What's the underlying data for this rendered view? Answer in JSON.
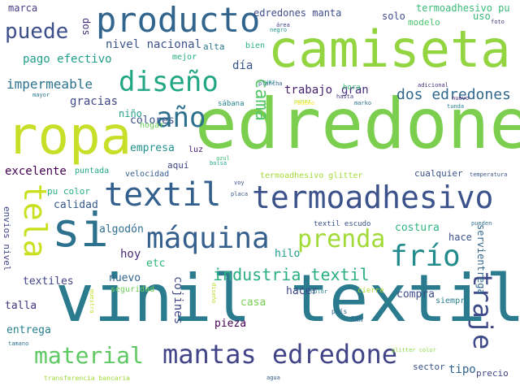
{
  "words": [
    {
      "text": "edredone",
      "color": "#7ccf4e"
    },
    {
      "text": "vinil textil",
      "color": "#2a7b8e"
    },
    {
      "text": "camiseta",
      "color": "#92d541"
    },
    {
      "text": "ropa",
      "color": "#c7df29"
    },
    {
      "text": "si",
      "color": "#2c718e"
    },
    {
      "text": "textil",
      "color": "#34608d"
    },
    {
      "text": "termoadhesivo",
      "color": "#3b528b"
    },
    {
      "text": "producto",
      "color": "#32658e"
    },
    {
      "text": "mantas edredone",
      "color": "#414487"
    },
    {
      "text": "máquina",
      "color": "#355f8d"
    },
    {
      "text": "tela",
      "color": "#c9e020"
    },
    {
      "text": "diseño",
      "color": "#22a784"
    },
    {
      "text": "año",
      "color": "#2d708e"
    },
    {
      "text": "frío",
      "color": "#228c8d"
    },
    {
      "text": "prenda",
      "color": "#a2da37"
    },
    {
      "text": "traje",
      "color": "#3e4a89"
    },
    {
      "text": "material",
      "color": "#5ec962"
    },
    {
      "text": "puede",
      "color": "#3c4f8a"
    },
    {
      "text": "industria textil",
      "color": "#29af7f"
    },
    {
      "text": "cama",
      "color": "#56c667"
    },
    {
      "text": "dos edredones",
      "color": "#31688e"
    },
    {
      "text": "trabajo",
      "color": "#482173"
    },
    {
      "text": "gran",
      "color": "#472d7b"
    },
    {
      "text": "impermeable",
      "color": "#2c728e"
    },
    {
      "text": "edredones manta",
      "color": "#3d4d8a"
    },
    {
      "text": "termoadhesivo pu",
      "color": "#3aba76"
    },
    {
      "text": "solo",
      "color": "#3e4989"
    },
    {
      "text": "modelo",
      "color": "#4ec36b"
    },
    {
      "text": "uso",
      "color": "#35b779"
    },
    {
      "text": "tipo",
      "color": "#33638d"
    },
    {
      "text": "nivel nacional",
      "color": "#3b528b"
    },
    {
      "text": "pago efectivo",
      "color": "#1f9e89"
    },
    {
      "text": "marca",
      "color": "#443b84"
    },
    {
      "text": "dos",
      "color": "#46327e"
    },
    {
      "text": "día",
      "color": "#39568c"
    },
    {
      "text": "alta",
      "color": "#2a778e"
    },
    {
      "text": "bien",
      "color": "#2fb47c"
    },
    {
      "text": "mejor",
      "color": "#25ac82"
    },
    {
      "text": "gracias",
      "color": "#3f4788"
    },
    {
      "text": "colores",
      "color": "#3b518b"
    },
    {
      "text": "niño",
      "color": "#1fa187"
    },
    {
      "text": "hogar",
      "color": "#6ece58"
    },
    {
      "text": "empresa",
      "color": "#21918c"
    },
    {
      "text": "luz",
      "color": "#481a6c"
    },
    {
      "text": "excelente",
      "color": "#440154"
    },
    {
      "text": "puntada",
      "color": "#22a785"
    },
    {
      "text": "velocidad",
      "color": "#355e8d"
    },
    {
      "text": "aquí",
      "color": "#3f4889"
    },
    {
      "text": "hora",
      "color": "#3dbc74"
    },
    {
      "text": "sábana",
      "color": "#25848e"
    },
    {
      "text": "calidad",
      "color": "#38598c"
    },
    {
      "text": "pu color",
      "color": "#29af7f"
    },
    {
      "text": "algodón",
      "color": "#2e6e8e"
    },
    {
      "text": "hoy",
      "color": "#472c7a"
    },
    {
      "text": "etc",
      "color": "#2fb47c"
    },
    {
      "text": "hilo",
      "color": "#1e9b8a"
    },
    {
      "text": "costura",
      "color": "#2fb47c"
    },
    {
      "text": "hace",
      "color": "#3b528b"
    },
    {
      "text": "textiles",
      "color": "#414487"
    },
    {
      "text": "nuevo",
      "color": "#33638d"
    },
    {
      "text": "seguridad",
      "color": "#6ccd5a"
    },
    {
      "text": "cojines",
      "color": "#3f4788"
    },
    {
      "text": "talla",
      "color": "#46327e"
    },
    {
      "text": "casa",
      "color": "#7ad151"
    },
    {
      "text": "hacer",
      "color": "#3f4788"
    },
    {
      "text": "compra",
      "color": "#3e4c8a"
    },
    {
      "text": "siempre",
      "color": "#277f8e"
    },
    {
      "text": "entrega",
      "color": "#277f8e"
    },
    {
      "text": "pieza",
      "color": "#440154"
    },
    {
      "text": "mm",
      "color": "#2e6d8e"
    },
    {
      "text": "sector",
      "color": "#3b528b"
    },
    {
      "text": "precio",
      "color": "#414487"
    },
    {
      "text": "cualquier",
      "color": "#3b518b"
    },
    {
      "text": "servientrega",
      "color": "#31678e"
    },
    {
      "text": "envios nivel",
      "color": "#414487"
    },
    {
      "text": "termoadhesivo glitter",
      "color": "#a5db36"
    },
    {
      "text": "textil escudo",
      "color": "#3b528b"
    },
    {
      "text": "temperatura",
      "color": "#39568c"
    },
    {
      "text": "adicional",
      "color": "#472d7b"
    },
    {
      "text": "nuevo",
      "color": "#482878"
    },
    {
      "text": "cierre",
      "color": "#b0dd2f"
    },
    {
      "text": "pueden",
      "color": "#2d708e"
    },
    {
      "text": "país",
      "color": "#33638d"
    },
    {
      "text": "color",
      "color": "#26828e"
    },
    {
      "text": "transferencia bancaria",
      "color": "#9fda3a"
    },
    {
      "text": "glitter color",
      "color": "#8fd744"
    },
    {
      "text": "agua",
      "color": "#365c8d"
    },
    {
      "text": "tamano",
      "color": "#2c728e"
    },
    {
      "text": "muestra",
      "color": "#c2df23"
    },
    {
      "text": "mayor",
      "color": "#2a788e"
    },
    {
      "text": "negro",
      "color": "#20938c"
    },
    {
      "text": "poner",
      "color": "#bddf26"
    },
    {
      "text": "voy",
      "color": "#3b528b"
    },
    {
      "text": "placa",
      "color": "#39568c"
    },
    {
      "text": "área",
      "color": "#404588"
    },
    {
      "text": "foto",
      "color": "#46337f"
    },
    {
      "text": "bueno",
      "color": "#fde725"
    },
    {
      "text": "hasta",
      "color": "#443983"
    },
    {
      "text": "marko",
      "color": "#2c718e"
    },
    {
      "text": "tunda",
      "color": "#27808e"
    },
    {
      "text": "plancha",
      "color": "#32658e"
    },
    {
      "text": "bolsa",
      "color": "#20a486"
    },
    {
      "text": "vez",
      "color": "#20928c"
    },
    {
      "text": "azul",
      "color": "#3dbc74"
    },
    {
      "text": "diseño",
      "color": "#b5de2b"
    }
  ]
}
